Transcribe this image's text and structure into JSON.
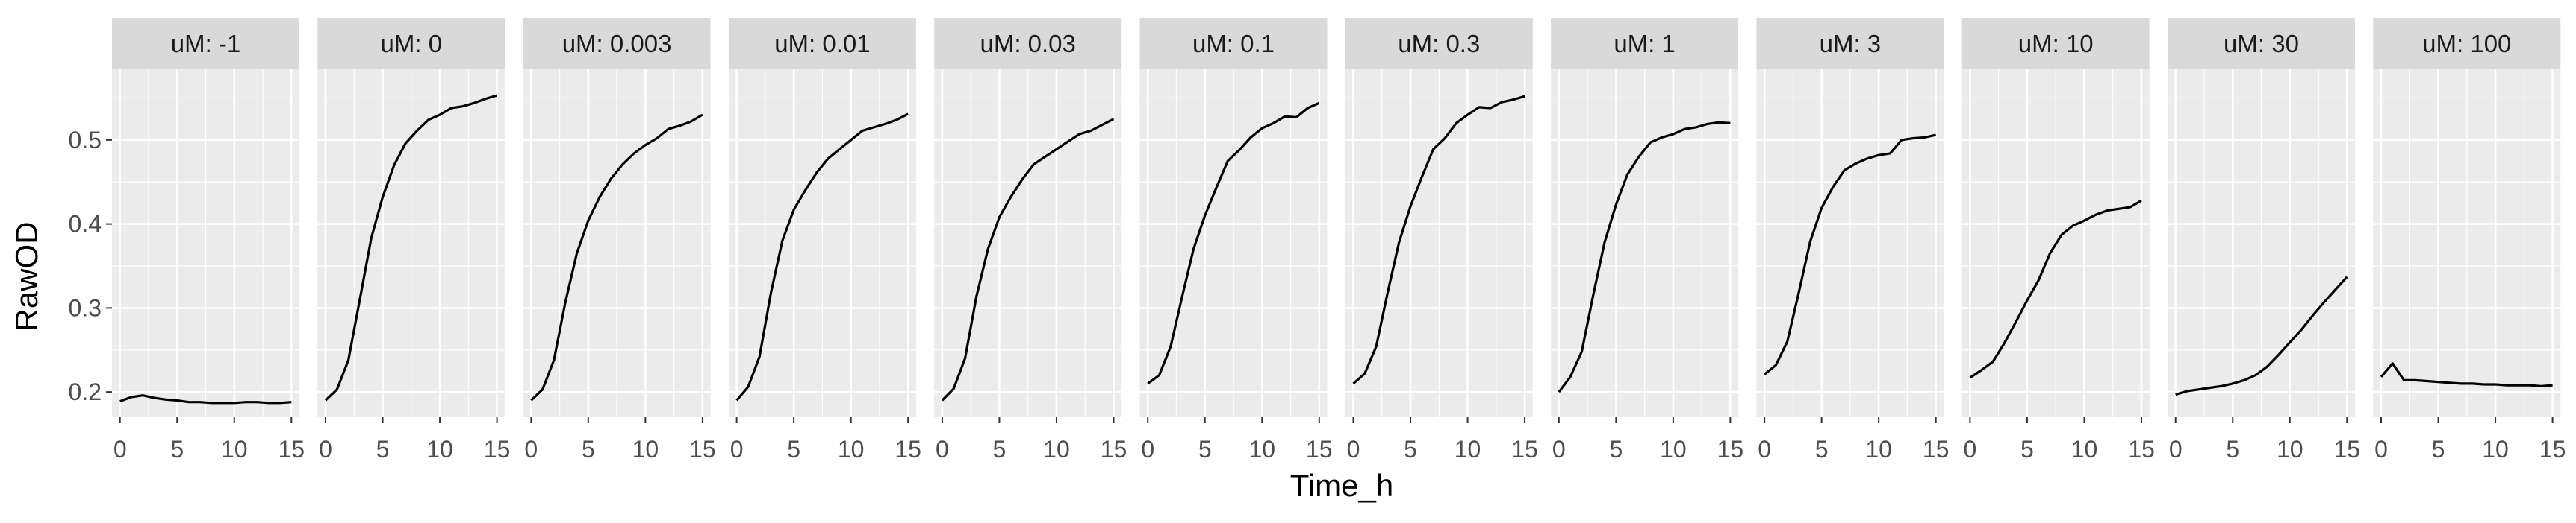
{
  "chart_data": {
    "type": "line",
    "facet_label_prefix": "uM: ",
    "xlabel": "Time_h",
    "ylabel": "RawOD",
    "xlim": [
      -0.7,
      15.7
    ],
    "ylim": [
      0.17,
      0.585
    ],
    "x_ticks": [
      0,
      5,
      10,
      15
    ],
    "y_ticks": [
      0.2,
      0.3,
      0.4,
      0.5
    ],
    "y_tick_labels": [
      "0.2",
      "0.3",
      "0.4",
      "0.5"
    ],
    "grid": true,
    "legend": "none",
    "line_color": "#000000",
    "panel_bg": "#ebebeb",
    "strip_bg": "#d9d9d9",
    "x": [
      0,
      1,
      2,
      3,
      4,
      5,
      6,
      7,
      8,
      9,
      10,
      11,
      12,
      13,
      14,
      15
    ],
    "series": [
      {
        "facet": "-1",
        "values": [
          0.189,
          0.194,
          0.196,
          0.193,
          0.191,
          0.19,
          0.188,
          0.188,
          0.187,
          0.187,
          0.187,
          0.188,
          0.188,
          0.187,
          0.187,
          0.188
        ]
      },
      {
        "facet": "0",
        "values": [
          0.19,
          0.203,
          0.238,
          0.31,
          0.383,
          0.432,
          0.47,
          0.496,
          0.511,
          0.524,
          0.53,
          0.538,
          0.54,
          0.544,
          0.549,
          0.553
        ]
      },
      {
        "facet": "0.003",
        "values": [
          0.19,
          0.203,
          0.238,
          0.307,
          0.365,
          0.404,
          0.432,
          0.454,
          0.471,
          0.484,
          0.494,
          0.502,
          0.513,
          0.517,
          0.522,
          0.53
        ]
      },
      {
        "facet": "0.01",
        "values": [
          0.19,
          0.206,
          0.242,
          0.318,
          0.38,
          0.417,
          0.44,
          0.461,
          0.478,
          0.489,
          0.5,
          0.511,
          0.515,
          0.519,
          0.524,
          0.531
        ]
      },
      {
        "facet": "0.03",
        "values": [
          0.19,
          0.204,
          0.24,
          0.314,
          0.37,
          0.408,
          0.432,
          0.453,
          0.471,
          0.48,
          0.489,
          0.498,
          0.507,
          0.511,
          0.518,
          0.525
        ]
      },
      {
        "facet": "0.1",
        "values": [
          0.21,
          0.22,
          0.254,
          0.313,
          0.37,
          0.41,
          0.443,
          0.475,
          0.488,
          0.503,
          0.514,
          0.52,
          0.528,
          0.527,
          0.538,
          0.544
        ]
      },
      {
        "facet": "0.3",
        "values": [
          0.21,
          0.222,
          0.254,
          0.318,
          0.378,
          0.421,
          0.456,
          0.489,
          0.502,
          0.52,
          0.53,
          0.539,
          0.538,
          0.545,
          0.548,
          0.552
        ]
      },
      {
        "facet": "1",
        "values": [
          0.2,
          0.218,
          0.248,
          0.315,
          0.378,
          0.423,
          0.459,
          0.48,
          0.497,
          0.503,
          0.507,
          0.513,
          0.515,
          0.519,
          0.521,
          0.52
        ]
      },
      {
        "facet": "3",
        "values": [
          0.221,
          0.232,
          0.26,
          0.318,
          0.379,
          0.419,
          0.444,
          0.464,
          0.472,
          0.478,
          0.482,
          0.484,
          0.5,
          0.502,
          0.503,
          0.506
        ]
      },
      {
        "facet": "10",
        "values": [
          0.217,
          0.226,
          0.236,
          0.258,
          0.283,
          0.309,
          0.333,
          0.365,
          0.387,
          0.398,
          0.404,
          0.411,
          0.416,
          0.418,
          0.42,
          0.428
        ]
      },
      {
        "facet": "30",
        "values": [
          0.197,
          0.201,
          0.203,
          0.205,
          0.207,
          0.21,
          0.214,
          0.22,
          0.23,
          0.244,
          0.259,
          0.274,
          0.291,
          0.307,
          0.322,
          0.337
        ]
      },
      {
        "facet": "100",
        "values": [
          0.218,
          0.234,
          0.214,
          0.214,
          0.213,
          0.212,
          0.211,
          0.21,
          0.21,
          0.209,
          0.209,
          0.208,
          0.208,
          0.208,
          0.207,
          0.208
        ]
      }
    ]
  }
}
